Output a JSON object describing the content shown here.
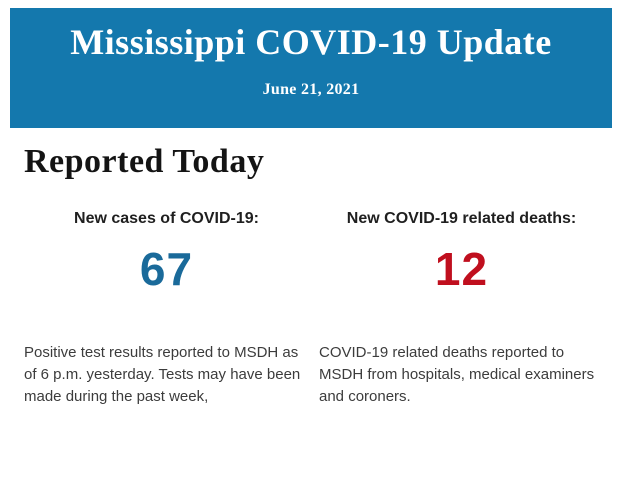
{
  "banner": {
    "title": "Mississippi COVID-19 Update",
    "date": "June 21, 2021",
    "bg_color": "#1478ad",
    "text_color": "#ffffff"
  },
  "section": {
    "heading": "Reported Today"
  },
  "stats": [
    {
      "label": "New cases of COVID-19:",
      "value": "67",
      "value_color": "#1a6a9a",
      "description": "Positive test results reported to MSDH as of 6 p.m. yesterday. Tests may have been made during the past week,"
    },
    {
      "label": "New COVID-19 related deaths:",
      "value": "12",
      "value_color": "#c00f1e",
      "description": "COVID-19 related deaths reported to MSDH from hospitals, medical examiners and coroners."
    }
  ]
}
